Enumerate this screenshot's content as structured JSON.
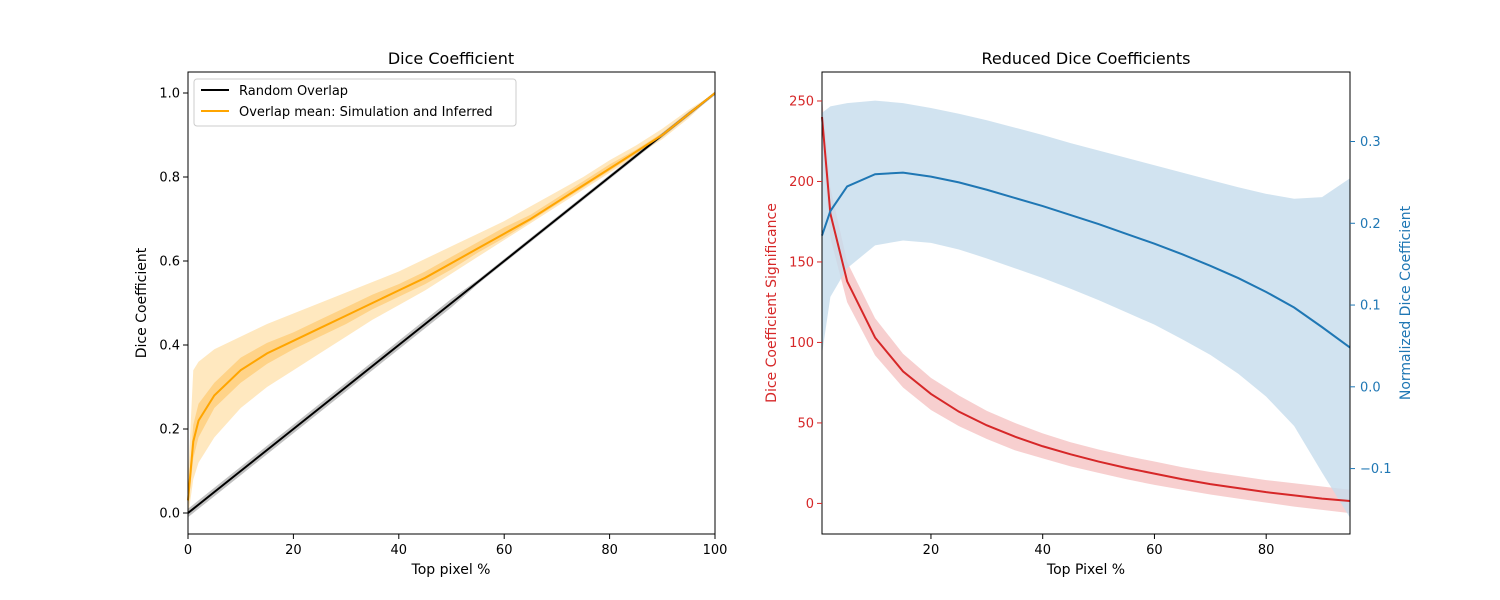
{
  "chart_data": [
    {
      "type": "line",
      "title": "Dice Coefficient",
      "xlabel": "Top pixel %",
      "ylabel": "Dice Coefficient",
      "xlim": [
        0,
        100
      ],
      "ylim": [
        -0.05,
        1.05
      ],
      "xticks": [
        0,
        20,
        40,
        60,
        80,
        100
      ],
      "yticks": [
        0.0,
        0.2,
        0.4,
        0.6,
        0.8,
        1.0
      ],
      "xtick_labels": [
        "0",
        "20",
        "40",
        "60",
        "80",
        "100"
      ],
      "ytick_labels": [
        "0.0",
        "0.2",
        "0.4",
        "0.6",
        "0.8",
        "1.0"
      ],
      "grid": false,
      "legend_position": "top-left",
      "colors": {
        "random": "#000000",
        "random_band": "#999999",
        "overlap": "#ffa500",
        "band_outer": "#ffd27f",
        "band_inner": "#ffbb44"
      },
      "series": [
        {
          "name": "Random Overlap",
          "x": [
            0,
            1,
            2,
            5,
            10,
            15,
            20,
            25,
            30,
            35,
            40,
            45,
            50,
            55,
            60,
            65,
            70,
            75,
            80,
            85,
            90,
            95,
            100
          ],
          "y": [
            0,
            0.01,
            0.02,
            0.05,
            0.1,
            0.15,
            0.2,
            0.25,
            0.3,
            0.35,
            0.4,
            0.45,
            0.5,
            0.55,
            0.6,
            0.65,
            0.7,
            0.75,
            0.8,
            0.85,
            0.9,
            0.95,
            1.0
          ],
          "band": {
            "lower": [
              -0.01,
              0.0,
              0.01,
              0.04,
              0.09,
              0.14,
              0.19,
              0.24,
              0.29,
              0.34,
              0.39,
              0.44,
              0.49,
              0.545,
              0.595,
              0.645,
              0.695,
              0.745,
              0.795,
              0.845,
              0.895,
              0.945,
              0.995
            ],
            "upper": [
              0.01,
              0.02,
              0.03,
              0.06,
              0.11,
              0.16,
              0.21,
              0.26,
              0.31,
              0.36,
              0.41,
              0.46,
              0.51,
              0.555,
              0.605,
              0.655,
              0.705,
              0.755,
              0.805,
              0.855,
              0.905,
              0.955,
              1.0
            ]
          }
        },
        {
          "name": "Overlap mean: Simulation and Inferred",
          "x": [
            0,
            1,
            2,
            5,
            10,
            15,
            20,
            25,
            30,
            35,
            40,
            45,
            50,
            55,
            60,
            65,
            70,
            75,
            80,
            85,
            90,
            95,
            100
          ],
          "y": [
            0.03,
            0.17,
            0.22,
            0.28,
            0.34,
            0.38,
            0.41,
            0.44,
            0.47,
            0.5,
            0.53,
            0.56,
            0.595,
            0.63,
            0.665,
            0.7,
            0.74,
            0.78,
            0.82,
            0.86,
            0.9,
            0.95,
            1.0
          ],
          "band_outer": {
            "lower": [
              -0.01,
              0.08,
              0.12,
              0.18,
              0.25,
              0.3,
              0.34,
              0.38,
              0.42,
              0.46,
              0.495,
              0.53,
              0.57,
              0.61,
              0.65,
              0.69,
              0.73,
              0.77,
              0.81,
              0.85,
              0.89,
              0.94,
              1.0
            ],
            "upper": [
              0.08,
              0.34,
              0.36,
              0.39,
              0.42,
              0.45,
              0.475,
              0.5,
              0.525,
              0.55,
              0.575,
              0.605,
              0.635,
              0.665,
              0.695,
              0.73,
              0.765,
              0.8,
              0.84,
              0.875,
              0.915,
              0.96,
              1.0
            ]
          },
          "band_inner": {
            "lower": [
              0.01,
              0.13,
              0.18,
              0.25,
              0.31,
              0.355,
              0.39,
              0.42,
              0.45,
              0.485,
              0.515,
              0.545,
              0.58,
              0.62,
              0.655,
              0.695,
              0.735,
              0.775,
              0.815,
              0.855,
              0.895,
              0.945,
              1.0
            ],
            "upper": [
              0.05,
              0.21,
              0.26,
              0.31,
              0.37,
              0.405,
              0.43,
              0.46,
              0.49,
              0.52,
              0.545,
              0.575,
              0.61,
              0.645,
              0.68,
              0.71,
              0.75,
              0.79,
              0.83,
              0.865,
              0.905,
              0.955,
              1.0
            ]
          }
        }
      ]
    },
    {
      "type": "line",
      "title": "Reduced Dice Coefficients",
      "xlabel": "Top Pixel %",
      "ylabel_left": "Dice Coefficient Significance",
      "ylabel_right": "Normalized Dice Coefficient",
      "xlim": [
        0.5,
        95
      ],
      "ylim_left": [
        -19,
        268
      ],
      "ylim_right": [
        -0.18,
        0.385
      ],
      "xticks": [
        20,
        40,
        60,
        80
      ],
      "xtick_labels": [
        "20",
        "40",
        "60",
        "80"
      ],
      "yticks_left": [
        0,
        50,
        100,
        150,
        200,
        250
      ],
      "ytick_labels_left": [
        "0",
        "50",
        "100",
        "150",
        "200",
        "250"
      ],
      "yticks_right": [
        -0.1,
        0.0,
        0.1,
        0.2,
        0.3
      ],
      "ytick_labels_right": [
        "−0.1",
        "0.0",
        "0.1",
        "0.2",
        "0.3"
      ],
      "grid": false,
      "colors": {
        "significance": "#d62728",
        "significance_band": "#f2b6b6",
        "normalized": "#1f77b4",
        "normalized_band": "#c6dcec"
      },
      "series": [
        {
          "name": "Dice Coefficient Significance",
          "axis": "left",
          "x": [
            0.5,
            2,
            5,
            10,
            15,
            20,
            25,
            30,
            35,
            40,
            45,
            50,
            55,
            60,
            65,
            70,
            75,
            80,
            85,
            90,
            95
          ],
          "y": [
            240,
            180,
            138,
            103,
            82,
            68,
            57,
            48.5,
            41.5,
            35.5,
            30.5,
            26,
            22,
            18.5,
            15,
            12,
            9.5,
            7,
            5,
            3,
            1.5
          ],
          "band": {
            "lower": [
              225,
              165,
              125,
              92,
              72,
              58,
              48,
              40,
              33,
              28,
              23,
              19,
              15,
              11.5,
              8.5,
              5.5,
              3,
              0.5,
              -2,
              -4,
              -6
            ],
            "upper": [
              252,
              196,
              150,
              115,
              93,
              78,
              67,
              57.5,
              50,
              43.5,
              38,
              33.5,
              29.5,
              26,
              22.5,
              19.5,
              17,
              14.5,
              12.5,
              10.5,
              8.5
            ]
          }
        },
        {
          "name": "Normalized Dice Coefficient",
          "axis": "right",
          "x": [
            0.5,
            2,
            5,
            10,
            15,
            20,
            25,
            30,
            35,
            40,
            45,
            50,
            55,
            60,
            65,
            70,
            75,
            80,
            85,
            90,
            95
          ],
          "y": [
            0.185,
            0.215,
            0.245,
            0.26,
            0.262,
            0.257,
            0.25,
            0.241,
            0.231,
            0.221,
            0.21,
            0.199,
            0.187,
            0.175,
            0.162,
            0.148,
            0.133,
            0.116,
            0.097,
            0.073,
            0.048
          ],
          "band": {
            "lower": [
              0.04,
              0.11,
              0.145,
              0.173,
              0.179,
              0.176,
              0.168,
              0.157,
              0.145,
              0.133,
              0.12,
              0.106,
              0.091,
              0.076,
              0.058,
              0.039,
              0.016,
              -0.012,
              -0.048,
              -0.105,
              -0.16
            ],
            "upper": [
              0.335,
              0.343,
              0.347,
              0.35,
              0.347,
              0.341,
              0.334,
              0.326,
              0.317,
              0.308,
              0.298,
              0.289,
              0.28,
              0.271,
              0.262,
              0.253,
              0.244,
              0.236,
              0.23,
              0.232,
              0.255
            ]
          }
        }
      ]
    }
  ]
}
